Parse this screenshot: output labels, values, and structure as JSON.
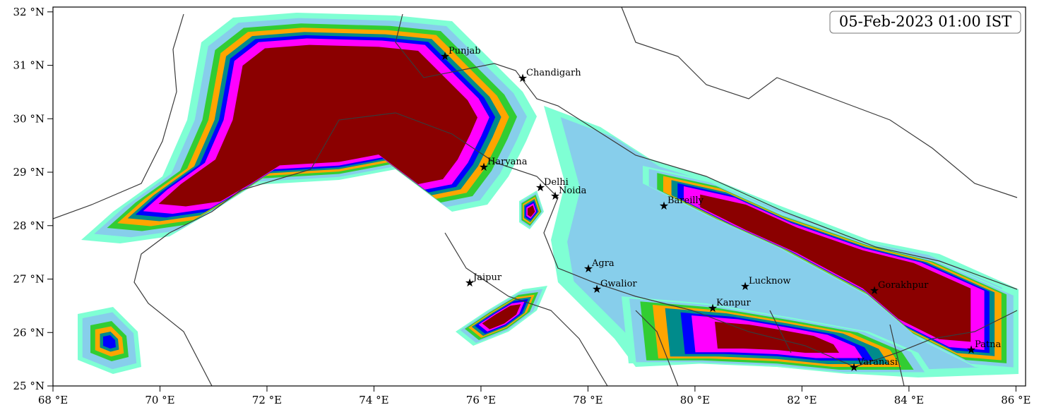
{
  "timestamp": "05-Feb-2023 01:00 IST",
  "axes": {
    "xlim": [
      68,
      86.18
    ],
    "ylim": [
      25,
      32.09
    ],
    "xticks": [
      {
        "value": 68,
        "label": "68 °E"
      },
      {
        "value": 70,
        "label": "70 °E"
      },
      {
        "value": 72,
        "label": "72 °E"
      },
      {
        "value": 74,
        "label": "74 °E"
      },
      {
        "value": 76,
        "label": "76 °E"
      },
      {
        "value": 78,
        "label": "78 °E"
      },
      {
        "value": 80,
        "label": "80 °E"
      },
      {
        "value": 82,
        "label": "82 °E"
      },
      {
        "value": 84,
        "label": "84 °E"
      },
      {
        "value": 86,
        "label": "86 °E"
      }
    ],
    "yticks": [
      {
        "value": 25,
        "label": "25 °N"
      },
      {
        "value": 26,
        "label": "26 °N"
      },
      {
        "value": 27,
        "label": "27 °N"
      },
      {
        "value": 28,
        "label": "28 °N"
      },
      {
        "value": 29,
        "label": "29 °N"
      },
      {
        "value": 30,
        "label": "30 °N"
      },
      {
        "value": 31,
        "label": "31 °N"
      },
      {
        "value": 32,
        "label": "32 °N"
      }
    ]
  },
  "cities": [
    "Punjab",
    "Chandigarh",
    "Haryana",
    "Delhi",
    "Noida",
    "Bareilly",
    "Agra",
    "Gwalior",
    "Kanpur",
    "Lucknow",
    "Gorakhpur",
    "Varanasi",
    "Jaipur",
    "Patna"
  ]
}
